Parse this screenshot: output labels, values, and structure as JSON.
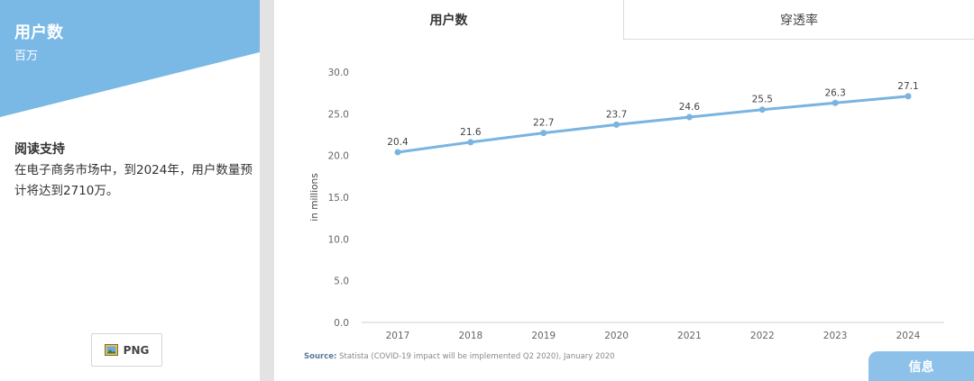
{
  "sidebar": {
    "metric_title": "用户数",
    "metric_unit": "百万",
    "reading_title": "阅读支持",
    "reading_text": "在电子商务市场中，到2024年，用户数量预计将达到2710万。",
    "png_button_label": "PNG",
    "header_color": "#7ab8e6"
  },
  "tabs": [
    {
      "label": "用户数",
      "active": true
    },
    {
      "label": "穿透率",
      "active": false
    }
  ],
  "source": {
    "prefix": "Source:",
    "text": " Statista (COVID-19 impact will be implemented Q2 2020), January 2020"
  },
  "info_button_label": "信息",
  "chart_data": {
    "type": "line",
    "categories": [
      "2017",
      "2018",
      "2019",
      "2020",
      "2021",
      "2022",
      "2023",
      "2024"
    ],
    "series": [
      {
        "values": [
          20.4,
          21.6,
          22.7,
          23.7,
          24.6,
          25.5,
          26.3,
          27.1
        ]
      }
    ],
    "ylabel": "in millions",
    "ylim": [
      0,
      30
    ],
    "yticks": [
      "0.0",
      "5.0",
      "10.0",
      "15.0",
      "20.0",
      "25.0",
      "30.0"
    ],
    "data_labels": [
      "20.4",
      "21.6",
      "22.7",
      "23.7",
      "24.6",
      "25.5",
      "26.3",
      "27.1"
    ],
    "line_color": "#7ab4e0",
    "grid": false
  }
}
